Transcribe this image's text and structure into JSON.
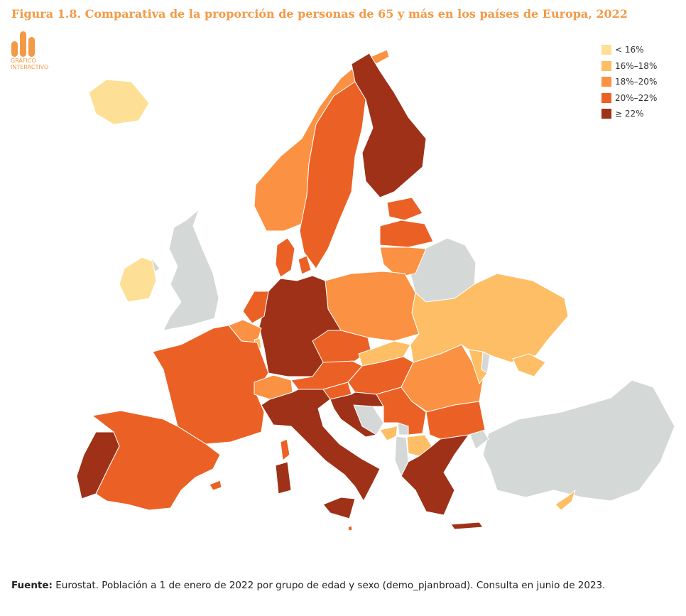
{
  "figure": {
    "title": "Figura 1.8. Comparativa de la proporción de personas de 65 y más en los países de Europa, 2022",
    "badge_label": "GRÁFICO\nINTERACTIVO"
  },
  "legend": [
    {
      "label": "< 16%",
      "color": "#fde096"
    },
    {
      "label": "16%–18%",
      "color": "#fdbe65"
    },
    {
      "label": "18%–20%",
      "color": "#fb9142"
    },
    {
      "label": "20%–22%",
      "color": "#eb6125"
    },
    {
      "label": "≥ 22%",
      "color": "#9e3117"
    }
  ],
  "no_data_color": "#d4d8d6",
  "map": {
    "regions": [
      {
        "name": "Iceland",
        "class": 0
      },
      {
        "name": "Ireland",
        "class": 0
      },
      {
        "name": "Cyprus",
        "class": 1
      },
      {
        "name": "Ukraine",
        "class": 1
      },
      {
        "name": "Slovakia",
        "class": 1
      },
      {
        "name": "Moldova",
        "class": 1
      },
      {
        "name": "Montenegro",
        "class": 1
      },
      {
        "name": "North Macedonia",
        "class": 1
      },
      {
        "name": "Luxembourg",
        "class": 1
      },
      {
        "name": "Norway",
        "class": 2
      },
      {
        "name": "Poland",
        "class": 2
      },
      {
        "name": "Lithuania",
        "class": 2
      },
      {
        "name": "Romania",
        "class": 2
      },
      {
        "name": "Switzerland",
        "class": 2
      },
      {
        "name": "Belgium",
        "class": 2
      },
      {
        "name": "Sweden",
        "class": 3
      },
      {
        "name": "Denmark",
        "class": 3
      },
      {
        "name": "Estonia",
        "class": 3
      },
      {
        "name": "Latvia",
        "class": 3
      },
      {
        "name": "France",
        "class": 3
      },
      {
        "name": "Spain",
        "class": 3
      },
      {
        "name": "Czechia",
        "class": 3
      },
      {
        "name": "Austria",
        "class": 3
      },
      {
        "name": "Hungary",
        "class": 3
      },
      {
        "name": "Serbia",
        "class": 3
      },
      {
        "name": "Bulgaria",
        "class": 3
      },
      {
        "name": "Slovenia",
        "class": 3
      },
      {
        "name": "Netherlands",
        "class": 3
      },
      {
        "name": "Malta",
        "class": 3
      },
      {
        "name": "Finland",
        "class": 4
      },
      {
        "name": "Germany",
        "class": 4
      },
      {
        "name": "Italy",
        "class": 4
      },
      {
        "name": "Portugal",
        "class": 4
      },
      {
        "name": "Greece",
        "class": 4
      },
      {
        "name": "Croatia",
        "class": 4
      },
      {
        "name": "United Kingdom",
        "class": null
      },
      {
        "name": "Belarus",
        "class": null
      },
      {
        "name": "Turkey",
        "class": null
      },
      {
        "name": "Bosnia and Herzegovina",
        "class": null
      },
      {
        "name": "Albania",
        "class": null
      },
      {
        "name": "Kosovo",
        "class": null
      },
      {
        "name": "Northern Ireland",
        "class": null
      },
      {
        "name": "Transnistria",
        "class": null
      }
    ]
  },
  "source": {
    "label": "Fuente:",
    "text": " Eurostat. Población a 1 de enero de 2022 por grupo de edad y sexo (demo_pjanbroad). Consulta en junio de 2023."
  }
}
